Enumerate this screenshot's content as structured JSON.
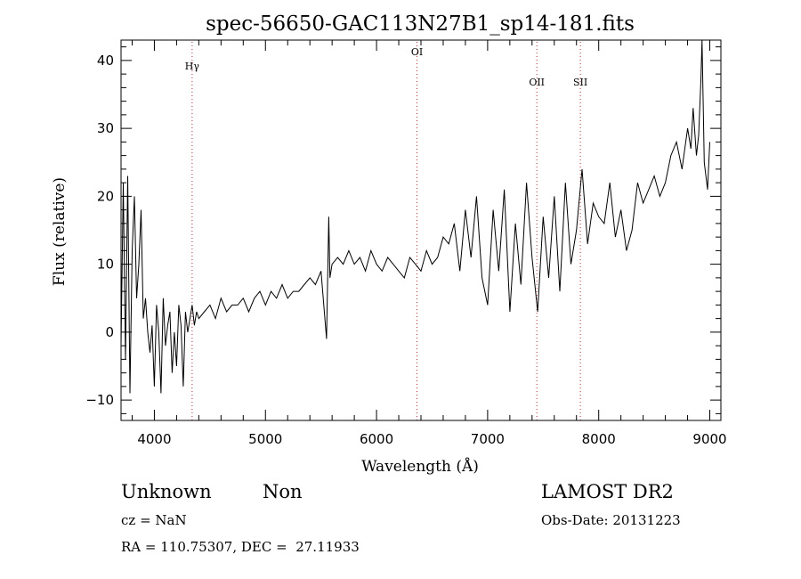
{
  "chart_data": {
    "type": "line",
    "title": "spec-56650-GAC113N27B1_sp14-181.fits",
    "xlabel": "Wavelength (Å)",
    "ylabel": "Flux (relative)",
    "xlim": [
      3700,
      9100
    ],
    "ylim": [
      -13,
      43
    ],
    "x_ticks": [
      4000,
      5000,
      6000,
      7000,
      8000,
      9000
    ],
    "y_ticks": [
      -10,
      0,
      10,
      20,
      30,
      40
    ],
    "grid": false,
    "line_color": "#000000",
    "marker_color": "#b03030",
    "lines": [
      {
        "label": "Hγ",
        "x": 4340
      },
      {
        "label": "OI",
        "x": 6364
      },
      {
        "label": "OII",
        "x": 7443
      },
      {
        "label": "SII",
        "x": 7835
      }
    ],
    "series": [
      {
        "x": [
          3700,
          3720,
          3740,
          3760,
          3780,
          3800,
          3820,
          3840,
          3860,
          3880,
          3900,
          3920,
          3940,
          3960,
          3980,
          4000,
          4020,
          4040,
          4060,
          4080,
          4100,
          4120,
          4140,
          4160,
          4180,
          4200,
          4220,
          4240,
          4260,
          4280,
          4300,
          4320,
          4340,
          4360,
          4380,
          4400,
          4450,
          4500,
          4550,
          4600,
          4650,
          4700,
          4750,
          4800,
          4850,
          4900,
          4950,
          5000,
          5050,
          5100,
          5150,
          5200,
          5250,
          5300,
          5350,
          5400,
          5450,
          5500,
          5550,
          5570,
          5580,
          5600,
          5650,
          5700,
          5750,
          5800,
          5850,
          5900,
          5950,
          6000,
          6050,
          6100,
          6150,
          6200,
          6250,
          6300,
          6350,
          6400,
          6450,
          6500,
          6550,
          6600,
          6650,
          6700,
          6750,
          6800,
          6850,
          6900,
          6950,
          7000,
          7050,
          7100,
          7150,
          7200,
          7250,
          7300,
          7350,
          7400,
          7450,
          7500,
          7550,
          7600,
          7650,
          7700,
          7750,
          7800,
          7850,
          7900,
          7950,
          8000,
          8050,
          8100,
          8150,
          8200,
          8250,
          8300,
          8350,
          8400,
          8450,
          8500,
          8550,
          8600,
          8650,
          8700,
          8750,
          8800,
          8830,
          8850,
          8880,
          8900,
          8920,
          8930,
          8950,
          8980,
          9000
        ],
        "y": [
          -2,
          22,
          -4,
          23,
          -9,
          12,
          20,
          5,
          10,
          18,
          2,
          5,
          0,
          -3,
          1,
          -8,
          4,
          0,
          -9,
          5,
          -2,
          1,
          3,
          -6,
          0,
          -5,
          4,
          1,
          -8,
          3,
          0,
          2,
          4,
          1,
          3,
          2,
          3,
          4,
          2,
          5,
          3,
          4,
          4,
          5,
          3,
          5,
          6,
          4,
          6,
          5,
          7,
          5,
          6,
          6,
          7,
          8,
          7,
          9,
          -1,
          17,
          8,
          10,
          11,
          10,
          12,
          10,
          11,
          9,
          12,
          10,
          9,
          11,
          10,
          9,
          8,
          11,
          10,
          9,
          12,
          10,
          11,
          14,
          13,
          16,
          9,
          18,
          11,
          20,
          8,
          4,
          18,
          9,
          21,
          3,
          16,
          7,
          22,
          11,
          3,
          17,
          8,
          20,
          6,
          22,
          10,
          15,
          24,
          13,
          19,
          17,
          16,
          22,
          14,
          18,
          12,
          15,
          22,
          19,
          21,
          23,
          20,
          22,
          26,
          28,
          24,
          30,
          27,
          33,
          26,
          29,
          37,
          43,
          25,
          21,
          28
        ]
      }
    ]
  },
  "info": {
    "object_class": "Unknown",
    "subclass": "Non",
    "survey": "LAMOST DR2",
    "cz": "cz = NaN",
    "obs_date": "Obs-Date: 20131223",
    "coords": "RA = 110.75307, DEC =  27.11933"
  }
}
